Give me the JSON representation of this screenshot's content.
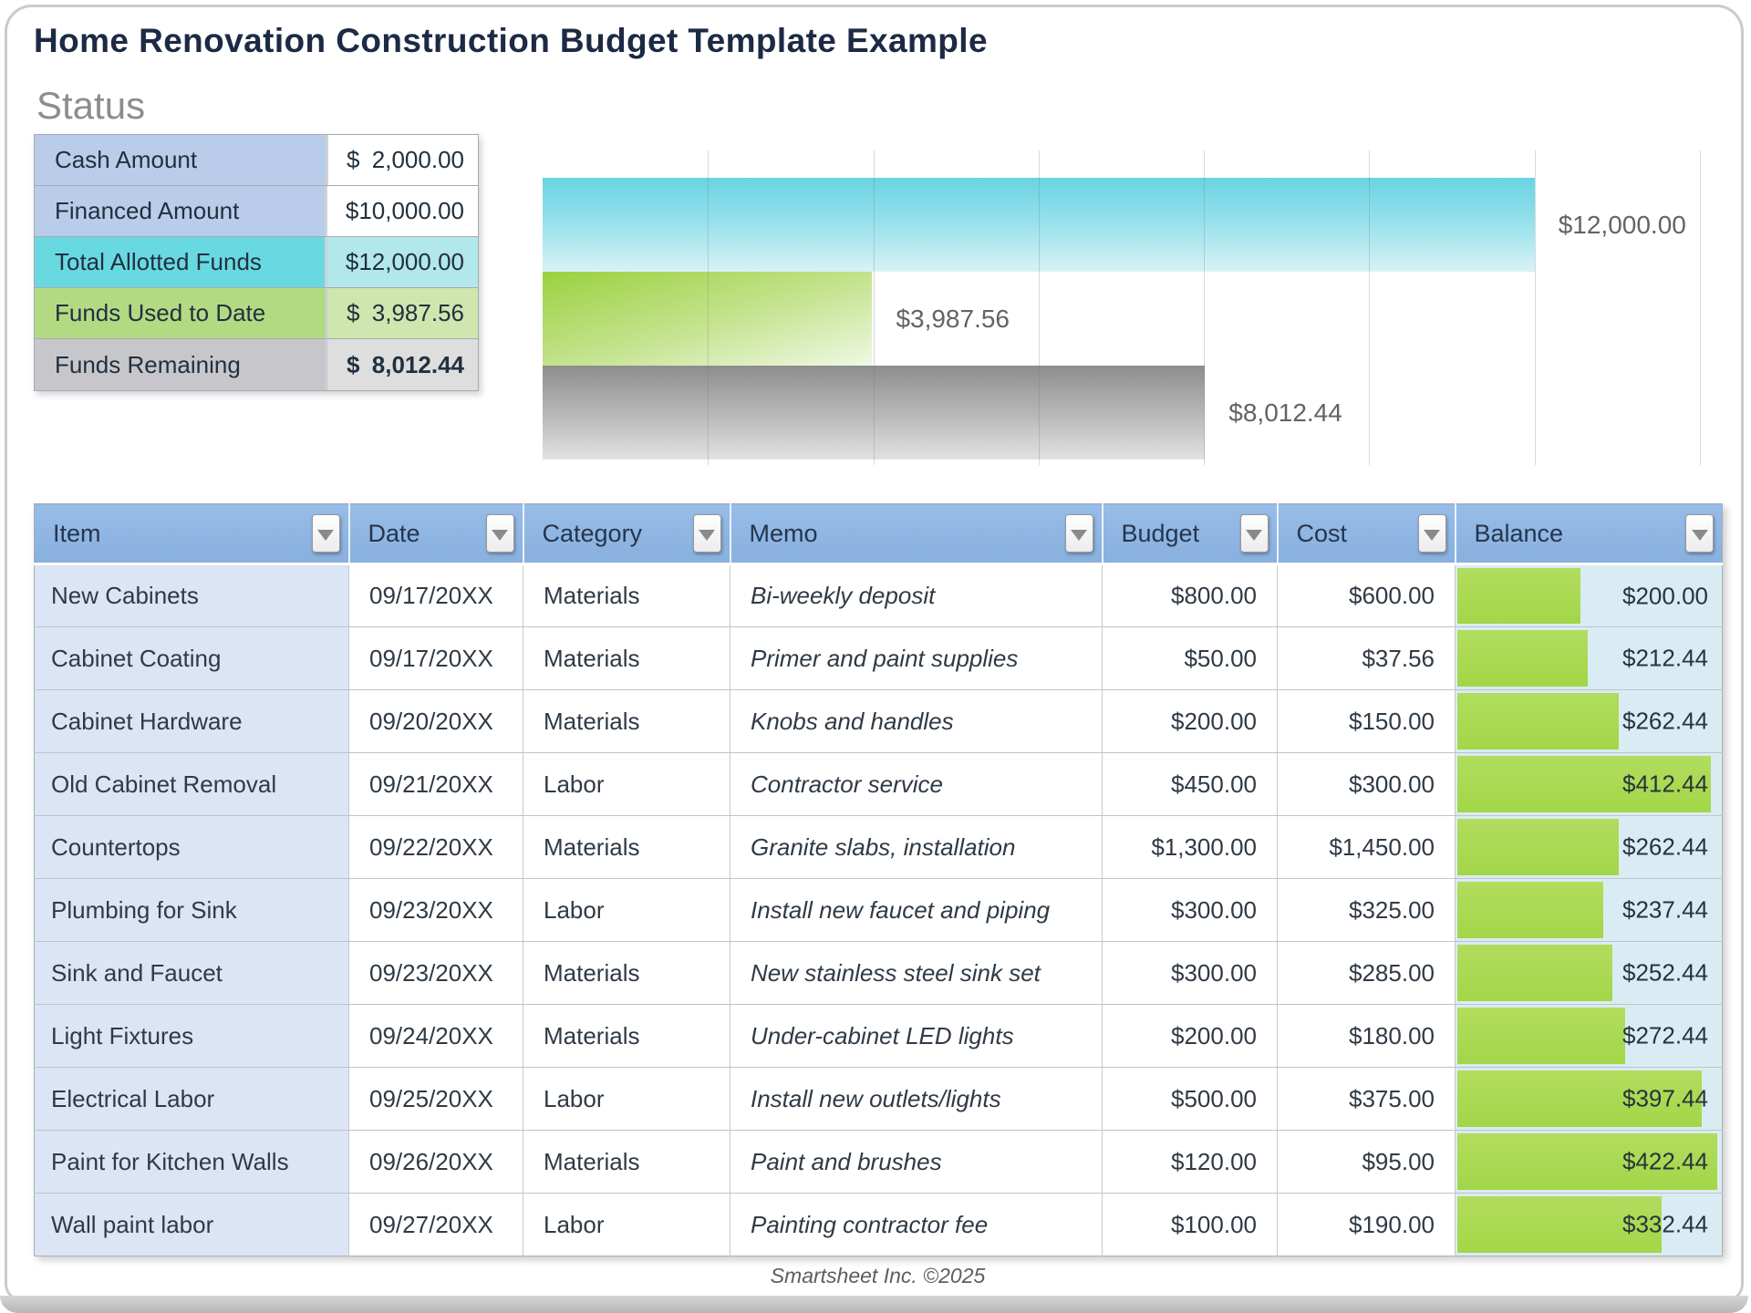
{
  "page": {
    "title": "Home Renovation Construction Budget Template Example",
    "section_status": "Status",
    "footer": "Smartsheet Inc. ©2025"
  },
  "colors": {
    "title_navy": "#1c2a44",
    "header_blue": "#8eb4e3",
    "item_cell_blue": "#dbe5f5",
    "balance_cell_blue": "#daecf3",
    "balance_bar_green": "#a8d94e",
    "status_label_blue": "#b9cdea",
    "status_cyan": "#69d9e1",
    "status_cyan_light": "#b2e7ec",
    "status_green": "#b2da83",
    "status_green_light": "#cfe7ae",
    "status_gray": "#c7c7cb",
    "status_gray_light": "#dedede",
    "chart_cyan": "#6fd5e2",
    "chart_green": "#9cd243",
    "chart_gray": "#8f8f8f"
  },
  "status_table": {
    "rows": [
      {
        "label": "Cash Amount",
        "currency": "$",
        "value": "2,000.00",
        "style": "blue",
        "bold": false
      },
      {
        "label": "Financed Amount",
        "currency": "$",
        "value": "10,000.00",
        "style": "blue",
        "bold": false
      },
      {
        "label": "Total Allotted Funds",
        "currency": "$",
        "value": "12,000.00",
        "style": "cyan",
        "bold": false
      },
      {
        "label": "Funds Used to Date",
        "currency": "$",
        "value": "3,987.56",
        "style": "green",
        "bold": false
      },
      {
        "label": "Funds Remaining",
        "currency": "$",
        "value": "8,012.44",
        "style": "gray",
        "bold": true
      }
    ]
  },
  "chart_data": {
    "type": "bar",
    "orientation": "horizontal",
    "title": "",
    "series": [
      {
        "name": "Total Allotted Funds",
        "value": 12000.0,
        "label": "$12,000.00",
        "color": "cyan"
      },
      {
        "name": "Funds Used to Date",
        "value": 3987.56,
        "label": "$3,987.56",
        "color": "green"
      },
      {
        "name": "Funds Remaining",
        "value": 8012.44,
        "label": "$8,012.44",
        "color": "gray"
      }
    ],
    "axis_max": 14000,
    "gridline_interval": 2000,
    "grid": true,
    "legend": "none",
    "value_labels": "outside-end"
  },
  "budget_table": {
    "columns": [
      "Item",
      "Date",
      "Category",
      "Memo",
      "Budget",
      "Cost",
      "Balance"
    ],
    "rows": [
      {
        "item": "New Cabinets",
        "date": "09/17/20XX",
        "category": "Materials",
        "memo": "Bi-weekly deposit",
        "budget": "$800.00",
        "cost": "$600.00",
        "balance": "$200.00",
        "balance_value": 200.0
      },
      {
        "item": "Cabinet Coating",
        "date": "09/17/20XX",
        "category": "Materials",
        "memo": "Primer and paint supplies",
        "budget": "$50.00",
        "cost": "$37.56",
        "balance": "$212.44",
        "balance_value": 212.44
      },
      {
        "item": "Cabinet Hardware",
        "date": "09/20/20XX",
        "category": "Materials",
        "memo": "Knobs and handles",
        "budget": "$200.00",
        "cost": "$150.00",
        "balance": "$262.44",
        "balance_value": 262.44
      },
      {
        "item": "Old Cabinet Removal",
        "date": "09/21/20XX",
        "category": "Labor",
        "memo": "Contractor service",
        "budget": "$450.00",
        "cost": "$300.00",
        "balance": "$412.44",
        "balance_value": 412.44
      },
      {
        "item": "Countertops",
        "date": "09/22/20XX",
        "category": "Materials",
        "memo": "Granite slabs, installation",
        "budget": "$1,300.00",
        "cost": "$1,450.00",
        "balance": "$262.44",
        "balance_value": 262.44
      },
      {
        "item": "Plumbing for Sink",
        "date": "09/23/20XX",
        "category": "Labor",
        "memo": "Install new faucet and piping",
        "budget": "$300.00",
        "cost": "$325.00",
        "balance": "$237.44",
        "balance_value": 237.44
      },
      {
        "item": "Sink and Faucet",
        "date": "09/23/20XX",
        "category": "Materials",
        "memo": "New stainless steel sink set",
        "budget": "$300.00",
        "cost": "$285.00",
        "balance": "$252.44",
        "balance_value": 252.44
      },
      {
        "item": "Light Fixtures",
        "date": "09/24/20XX",
        "category": "Materials",
        "memo": "Under-cabinet LED lights",
        "budget": "$200.00",
        "cost": "$180.00",
        "balance": "$272.44",
        "balance_value": 272.44
      },
      {
        "item": "Electrical Labor",
        "date": "09/25/20XX",
        "category": "Labor",
        "memo": "Install new outlets/lights",
        "budget": "$500.00",
        "cost": "$375.00",
        "balance": "$397.44",
        "balance_value": 397.44
      },
      {
        "item": "Paint for Kitchen Walls",
        "date": "09/26/20XX",
        "category": "Materials",
        "memo": "Paint and brushes",
        "budget": "$120.00",
        "cost": "$95.00",
        "balance": "$422.44",
        "balance_value": 422.44
      },
      {
        "item": "Wall paint labor",
        "date": "09/27/20XX",
        "category": "Labor",
        "memo": "Painting contractor fee",
        "budget": "$100.00",
        "cost": "$190.00",
        "balance": "$332.44",
        "balance_value": 332.44
      }
    ]
  }
}
